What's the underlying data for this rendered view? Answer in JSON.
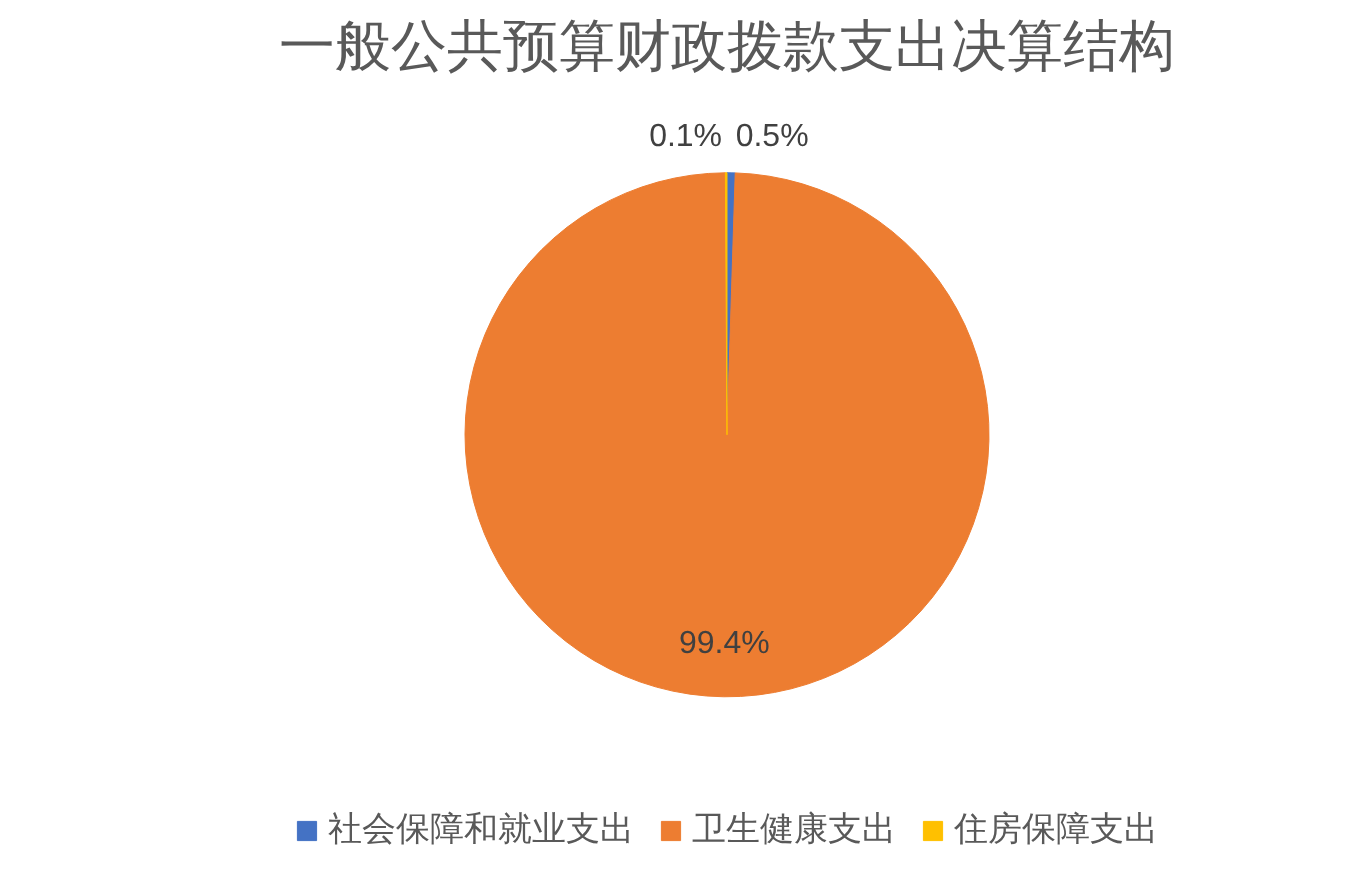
{
  "chart_data": {
    "type": "pie",
    "title": "一般公共预算财政拨款支出决算结构",
    "categories": [
      "社会保障和就业支出",
      "卫生健康支出",
      "住房保障支出"
    ],
    "values": [
      0.5,
      99.4,
      0.1
    ],
    "colors": [
      "#4472c4",
      "#ed7d31",
      "#ffc000"
    ],
    "value_labels": [
      "0.5%",
      "99.4%",
      "0.1%"
    ],
    "legend": "bottom"
  }
}
